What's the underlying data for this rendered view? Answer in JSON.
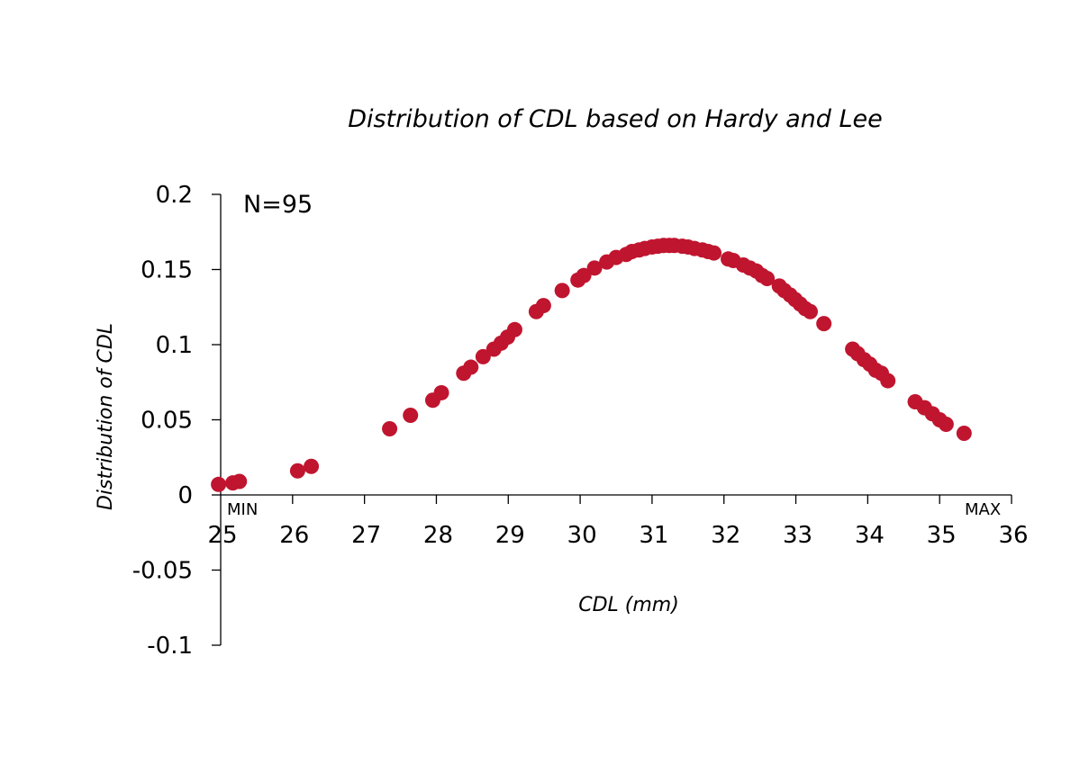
{
  "chart_data": {
    "type": "scatter",
    "title": "Distribution of CDL based on Hardy and Lee",
    "xlabel": "CDL (mm)",
    "ylabel": "Distribution of CDL",
    "annotation": "N=95",
    "min_label": "MIN",
    "max_label": "MAX",
    "xlim": [
      25,
      36
    ],
    "ylim": [
      -0.1,
      0.2
    ],
    "x_ticks": [
      25,
      26,
      27,
      28,
      29,
      30,
      31,
      32,
      33,
      34,
      35,
      36
    ],
    "y_ticks": [
      -0.1,
      -0.05,
      0,
      0.05,
      0.1,
      0.15,
      0.2
    ],
    "x_tick_labels": [
      "25",
      "26",
      "27",
      "28",
      "29",
      "30",
      "31",
      "32",
      "33",
      "34",
      "35",
      "36"
    ],
    "y_tick_labels": [
      "-0.1",
      "-0.05",
      "0",
      "0.05",
      "0.1",
      "0.15",
      "0.2"
    ],
    "grid": false,
    "marker_color": "#c0152f",
    "points": [
      [
        24.97,
        0.007
      ],
      [
        25.17,
        0.008
      ],
      [
        25.26,
        0.009
      ],
      [
        26.07,
        0.016
      ],
      [
        26.26,
        0.019
      ],
      [
        27.35,
        0.044
      ],
      [
        27.64,
        0.053
      ],
      [
        27.95,
        0.063
      ],
      [
        28.07,
        0.068
      ],
      [
        28.38,
        0.081
      ],
      [
        28.48,
        0.085
      ],
      [
        28.65,
        0.092
      ],
      [
        28.8,
        0.097
      ],
      [
        28.9,
        0.101
      ],
      [
        28.99,
        0.105
      ],
      [
        29.09,
        0.11
      ],
      [
        29.39,
        0.122
      ],
      [
        29.49,
        0.126
      ],
      [
        29.75,
        0.136
      ],
      [
        29.97,
        0.143
      ],
      [
        30.05,
        0.146
      ],
      [
        30.2,
        0.151
      ],
      [
        30.37,
        0.155
      ],
      [
        30.5,
        0.158
      ],
      [
        30.64,
        0.16
      ],
      [
        30.72,
        0.162
      ],
      [
        30.82,
        0.163
      ],
      [
        30.9,
        0.164
      ],
      [
        31.0,
        0.165
      ],
      [
        31.08,
        0.1655
      ],
      [
        31.16,
        0.166
      ],
      [
        31.24,
        0.166
      ],
      [
        31.31,
        0.166
      ],
      [
        31.42,
        0.1655
      ],
      [
        31.5,
        0.165
      ],
      [
        31.59,
        0.164
      ],
      [
        31.7,
        0.163
      ],
      [
        31.78,
        0.162
      ],
      [
        31.86,
        0.161
      ],
      [
        32.06,
        0.157
      ],
      [
        32.13,
        0.156
      ],
      [
        32.27,
        0.153
      ],
      [
        32.36,
        0.151
      ],
      [
        32.45,
        0.149
      ],
      [
        32.53,
        0.146
      ],
      [
        32.6,
        0.144
      ],
      [
        32.77,
        0.139
      ],
      [
        32.84,
        0.136
      ],
      [
        32.92,
        0.133
      ],
      [
        32.99,
        0.13
      ],
      [
        33.06,
        0.127
      ],
      [
        33.13,
        0.124
      ],
      [
        33.2,
        0.122
      ],
      [
        33.39,
        0.114
      ],
      [
        33.79,
        0.097
      ],
      [
        33.86,
        0.094
      ],
      [
        33.95,
        0.09
      ],
      [
        34.03,
        0.087
      ],
      [
        34.11,
        0.083
      ],
      [
        34.19,
        0.081
      ],
      [
        34.28,
        0.076
      ],
      [
        34.66,
        0.062
      ],
      [
        34.79,
        0.058
      ],
      [
        34.9,
        0.054
      ],
      [
        35.0,
        0.05
      ],
      [
        35.09,
        0.047
      ],
      [
        35.34,
        0.041
      ]
    ]
  }
}
